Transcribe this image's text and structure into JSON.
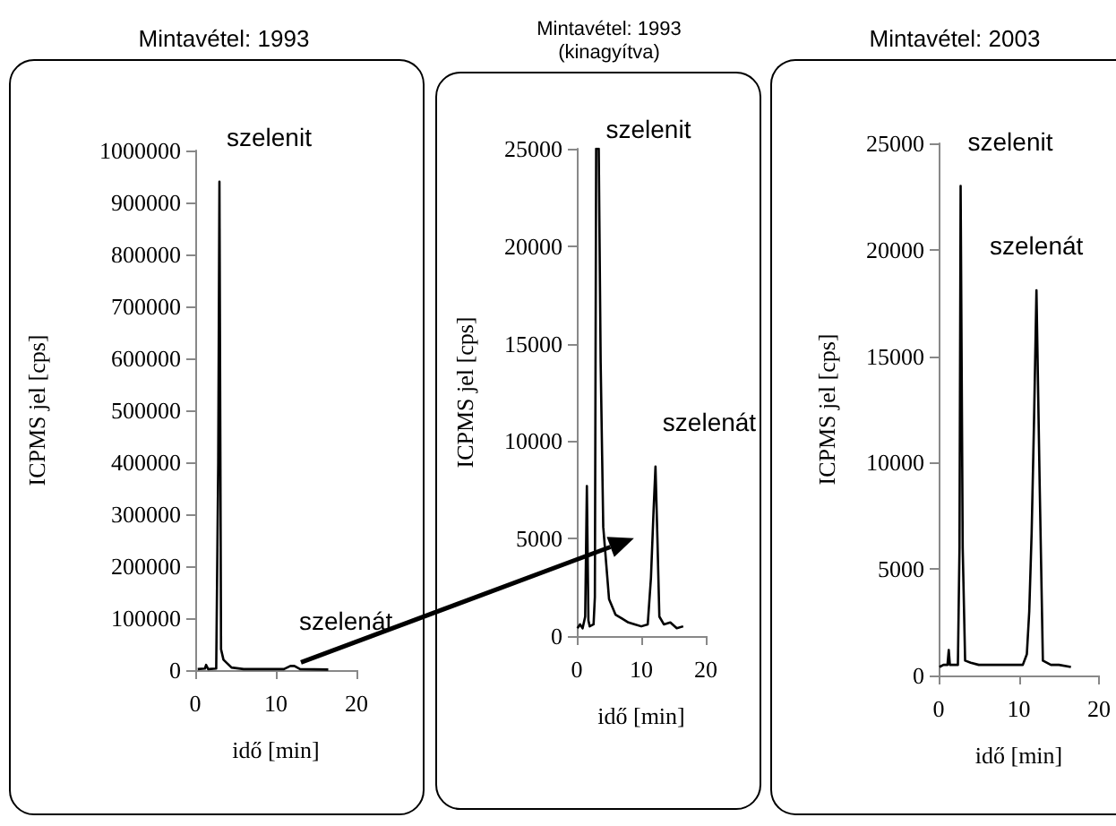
{
  "chart_data": [
    {
      "type": "line",
      "title": "Mintavétel: 1993",
      "xlabel": "idő [min]",
      "ylabel": "ICPMS jel [cps]",
      "x": [
        0.3,
        1.2,
        1.35,
        1.6,
        2.6,
        2.85,
        3.0,
        3.2,
        3.5,
        4.5,
        6,
        11,
        11.8,
        12.3,
        13,
        16.5
      ],
      "series": [
        {
          "color": "#000000",
          "values": [
            2000,
            3000,
            10000,
            2000,
            3000,
            400000,
            940000,
            40000,
            20000,
            5000,
            2000,
            2000,
            8000,
            8000,
            2000,
            1000
          ]
        }
      ],
      "xlim": [
        0,
        20
      ],
      "xticks": [
        0,
        10,
        20
      ],
      "ylim": [
        0,
        1000000
      ],
      "yticks": [
        0,
        100000,
        200000,
        300000,
        400000,
        500000,
        600000,
        700000,
        800000,
        900000,
        1000000
      ],
      "annotations": [
        {
          "text": "szelenit",
          "x": 3.0,
          "y": 940000
        },
        {
          "text": "szelenát",
          "x": 12,
          "y": 8000
        }
      ],
      "marker": "none",
      "line_style": "solid"
    },
    {
      "type": "line",
      "title": "Mintavétel: 1993",
      "subtitle": "(kinagyítva)",
      "xlabel": "idő [min]",
      "ylabel": "ICPMS jel [cps]",
      "x": [
        0.1,
        0.5,
        0.9,
        1.3,
        1.56,
        1.8,
        2.0,
        2.6,
        2.8,
        3.0,
        3.4,
        3.7,
        4.1,
        5.0,
        6.0,
        7.0,
        8.0,
        9.0,
        10.0,
        11.0,
        11.5,
        11.9,
        12.2,
        12.5,
        12.8,
        13.5,
        14.5,
        15.5,
        16.5
      ],
      "series": [
        {
          "color": "#000000",
          "values": [
            400,
            600,
            400,
            1000,
            7700,
            800,
            500,
            600,
            2000,
            25000,
            25000,
            14000,
            5600,
            1900,
            1100,
            900,
            700,
            600,
            500,
            600,
            3000,
            6400,
            8700,
            5000,
            1000,
            600,
            700,
            400,
            500
          ]
        }
      ],
      "xlim": [
        0,
        20
      ],
      "xticks": [
        0,
        10,
        20
      ],
      "ylim": [
        0,
        25000
      ],
      "yticks": [
        0,
        5000,
        10000,
        15000,
        20000,
        25000
      ],
      "annotations": [
        {
          "text": "szelenit",
          "x": 3.4,
          "y": 25000
        },
        {
          "text": "szelenát",
          "x": 12.2,
          "y": 8700
        }
      ],
      "marker": "none",
      "line_style": "solid"
    },
    {
      "type": "line",
      "title": "Mintavétel: 2003",
      "xlabel": "idő [min]",
      "ylabel": "ICPMS jel [cps]",
      "x": [
        0.1,
        0.6,
        1.1,
        1.26,
        1.4,
        2.0,
        2.4,
        2.6,
        2.74,
        3.0,
        3.3,
        4.0,
        5.0,
        6.0,
        7.0,
        8.0,
        9.0,
        10.5,
        11.0,
        11.3,
        11.6,
        11.9,
        12.2,
        12.6,
        13.0,
        14.0,
        15.0,
        16.5
      ],
      "series": [
        {
          "color": "#000000",
          "values": [
            400,
            500,
            500,
            1200,
            500,
            500,
            500,
            6000,
            23000,
            6000,
            700,
            600,
            500,
            500,
            500,
            500,
            500,
            500,
            1000,
            3000,
            6700,
            12000,
            18100,
            9000,
            700,
            500,
            500,
            400
          ]
        }
      ],
      "xlim": [
        0,
        20
      ],
      "xticks": [
        0,
        10,
        20
      ],
      "ylim": [
        0,
        25000
      ],
      "yticks": [
        0,
        5000,
        10000,
        15000,
        20000,
        25000
      ],
      "annotations": [
        {
          "text": "szelenit",
          "x": 2.74,
          "y": 23000
        },
        {
          "text": "szelenát",
          "x": 12.2,
          "y": 18100
        }
      ],
      "marker": "none",
      "line_style": "solid"
    }
  ]
}
